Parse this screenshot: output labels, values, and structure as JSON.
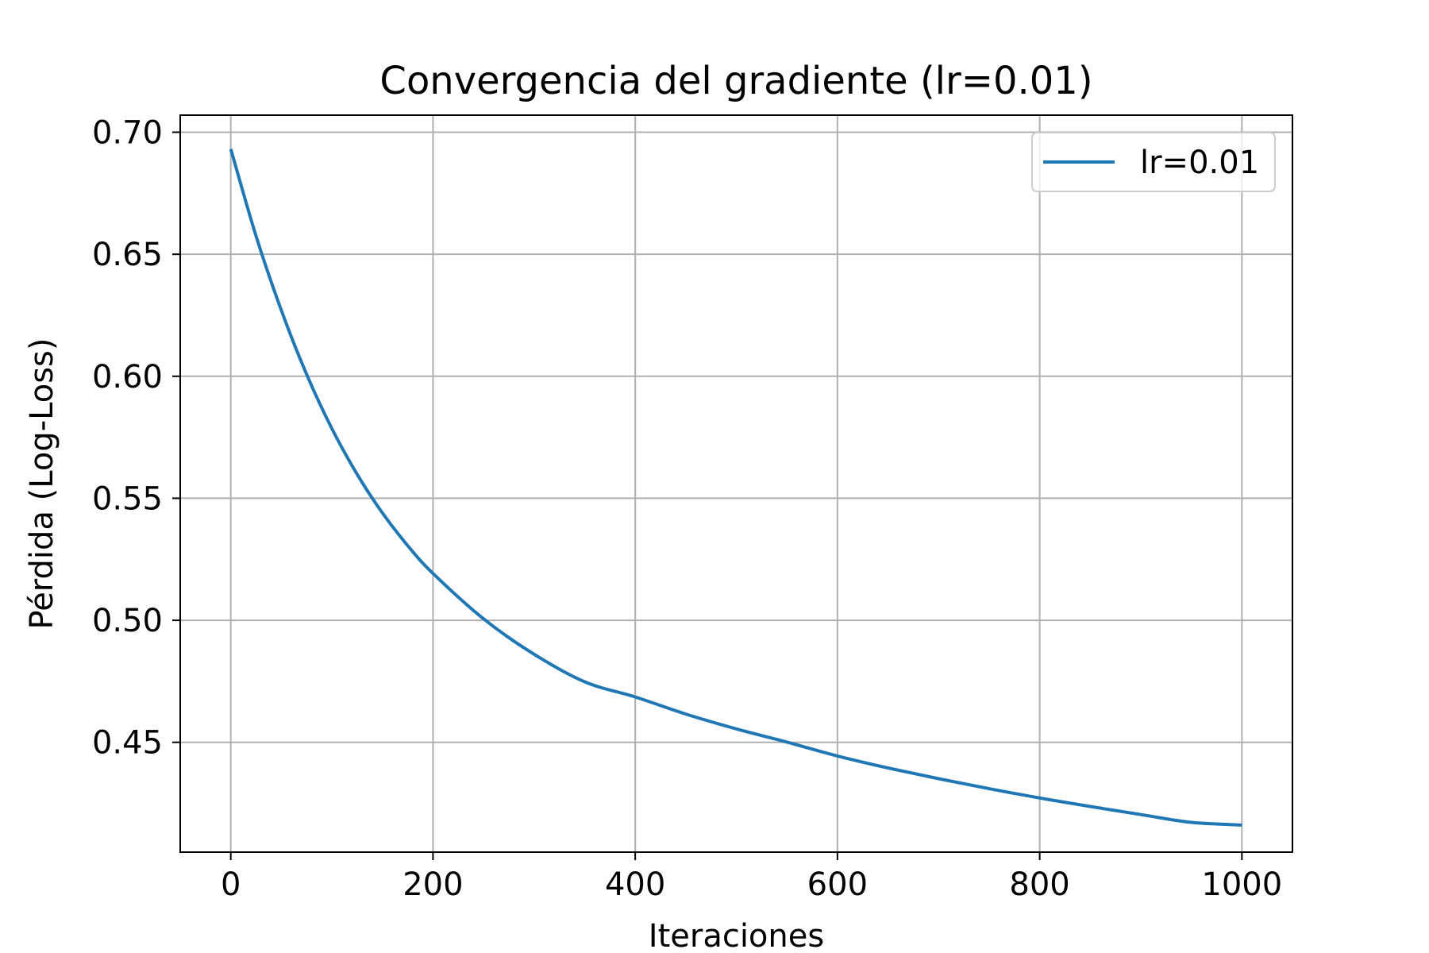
{
  "chart_data": {
    "type": "line",
    "title": "Convergencia del gradiente (lr=0.01)",
    "xlabel": "Iteraciones",
    "ylabel": "Pérdida (Log-Loss)",
    "xlim": [
      -50,
      1050
    ],
    "ylim": [
      0.405,
      0.707
    ],
    "xticks": [
      0,
      200,
      400,
      600,
      800,
      1000
    ],
    "xtick_labels": [
      "0",
      "200",
      "400",
      "600",
      "800",
      "1000"
    ],
    "yticks": [
      0.45,
      0.5,
      0.55,
      0.6,
      0.65,
      0.7
    ],
    "ytick_labels": [
      "0.45",
      "0.50",
      "0.55",
      "0.60",
      "0.65",
      "0.70"
    ],
    "grid": true,
    "legend_position": "upper right",
    "series": [
      {
        "name": "lr=0.01",
        "color": "#1f77b4",
        "x": [
          0,
          25,
          50,
          75,
          100,
          125,
          150,
          175,
          200,
          250,
          300,
          350,
          400,
          450,
          500,
          550,
          600,
          650,
          700,
          750,
          800,
          850,
          900,
          950,
          1000
        ],
        "y": [
          0.6931,
          0.6575,
          0.627,
          0.6008,
          0.5786,
          0.5598,
          0.544,
          0.5306,
          0.5192,
          0.5006,
          0.4861,
          0.4748,
          0.4686,
          0.4616,
          0.4555,
          0.4501,
          0.4444,
          0.4395,
          0.4351,
          0.431,
          0.4272,
          0.4237,
          0.4204,
          0.4172,
          0.4161
        ]
      }
    ]
  }
}
